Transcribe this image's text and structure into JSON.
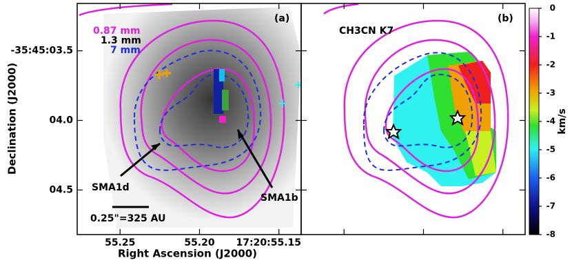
{
  "chart_data": {
    "type": "image",
    "x_label": "Right Ascension (J2000)",
    "y_label": "Declination (J2000)",
    "xlim": [
      55.277,
      55.136
    ],
    "xticks": [
      {
        "value": 55.25,
        "label": "55.25"
      },
      {
        "value": 55.2,
        "label": "55.20"
      },
      {
        "value": 55.15,
        "label": "17:20:55.15"
      }
    ],
    "ylim": [
      4.82,
      3.16
    ],
    "yticks": [
      {
        "value": 3.5,
        "label": "-35:45:03.5"
      },
      {
        "value": 4.0,
        "label": "04.0"
      },
      {
        "value": 4.5,
        "label": "04.5"
      }
    ],
    "panels": [
      {
        "label": "(a)",
        "legend": [
          {
            "name": "0.87 mm",
            "color": "#e020e0"
          },
          {
            "name": "1.3 mm",
            "color": "#000000"
          },
          {
            "name": "7 mm",
            "color": "#1a2ee0"
          }
        ],
        "annotations": [
          "SMA1d",
          "SMA1b"
        ],
        "scale_bar": "0.25\"=325 AU"
      },
      {
        "label": "(b)",
        "line": "CH3CN K7"
      }
    ],
    "colorbar": {
      "label": "km/s",
      "ylim": [
        -8,
        0
      ],
      "yticks": [
        0,
        -1,
        -2,
        -3,
        -4,
        -5,
        -6,
        -7,
        -8
      ]
    }
  }
}
